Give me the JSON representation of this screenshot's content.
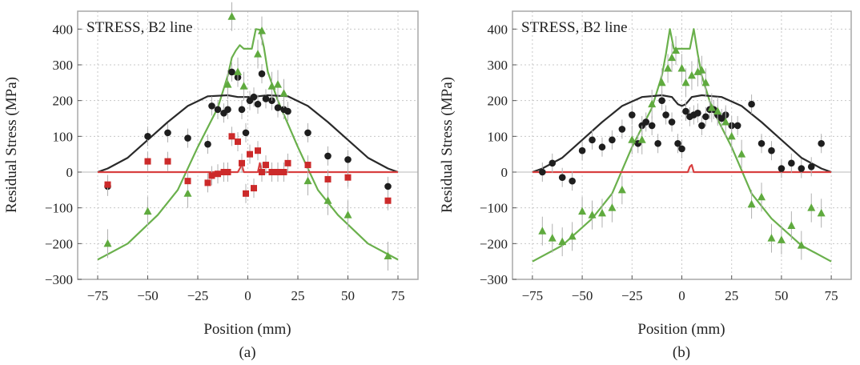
{
  "colors": {
    "model_black": "#2a2a2a",
    "model_green": "#6ab04c",
    "model_red": "#d84040",
    "marker_black": "#1e1e1e",
    "marker_green": "#5faa3e",
    "marker_red": "#cc2a2a",
    "grid": "#c8c8c8",
    "frame": "#a8a8a8",
    "errorbar": "#b0b0b0"
  },
  "chart_data": [
    {
      "id": "a",
      "type": "scatter",
      "panel_label": "(a)",
      "title": "STRESS, B2 line",
      "xlabel": "Position (mm)",
      "ylabel": "Residual Stress (MPa)",
      "xlim": [
        -85,
        85
      ],
      "ylim": [
        -300,
        450
      ],
      "xticks": [
        -75,
        -50,
        -25,
        0,
        25,
        50,
        75
      ],
      "xtick_labels": [
        "−75",
        "−50",
        "−25",
        "0",
        "25",
        "50",
        "75"
      ],
      "yticks": [
        -300,
        -200,
        -100,
        0,
        100,
        200,
        300,
        400
      ],
      "ytick_labels": [
        "−300",
        "−200",
        "−100",
        "0",
        "100",
        "200",
        "300",
        "400"
      ],
      "grid": true,
      "lines": [
        {
          "color_key": "model_green",
          "x": [
            -75,
            -60,
            -45,
            -35,
            -25,
            -15,
            -10,
            -8,
            -6,
            -4,
            -2,
            0,
            2,
            4,
            6,
            8,
            10,
            15,
            25,
            35,
            45,
            60,
            75
          ],
          "y": [
            -245,
            -200,
            -120,
            -50,
            70,
            180,
            270,
            320,
            340,
            355,
            345,
            345,
            345,
            400,
            398,
            350,
            280,
            200,
            70,
            -50,
            -120,
            -200,
            -245
          ]
        },
        {
          "color_key": "model_black",
          "x": [
            -75,
            -70,
            -60,
            -50,
            -40,
            -30,
            -20,
            -10,
            -5,
            0,
            5,
            10,
            20,
            30,
            40,
            50,
            60,
            70,
            75
          ],
          "y": [
            0,
            10,
            40,
            90,
            140,
            185,
            212,
            215,
            210,
            210,
            212,
            215,
            212,
            185,
            140,
            90,
            40,
            10,
            0
          ]
        },
        {
          "color_key": "model_red",
          "x": [
            -75,
            -5,
            -3,
            -2,
            0,
            5,
            6,
            7,
            8,
            75
          ],
          "y": [
            0,
            0,
            20,
            0,
            0,
            0,
            25,
            0,
            0,
            0
          ]
        }
      ],
      "series": [
        {
          "marker": "circle",
          "color_key": "marker_black",
          "points": [
            [
              -70,
              -40
            ],
            [
              -50,
              100
            ],
            [
              -40,
              110
            ],
            [
              -30,
              95
            ],
            [
              -20,
              78
            ],
            [
              -18,
              185
            ],
            [
              -15,
              175
            ],
            [
              -12,
              165
            ],
            [
              -10,
              175
            ],
            [
              -8,
              280
            ],
            [
              -5,
              265
            ],
            [
              -3,
              175
            ],
            [
              -1,
              110
            ],
            [
              1,
              200
            ],
            [
              3,
              210
            ],
            [
              5,
              190
            ],
            [
              7,
              275
            ],
            [
              9,
              205
            ],
            [
              12,
              200
            ],
            [
              15,
              180
            ],
            [
              18,
              175
            ],
            [
              20,
              170
            ],
            [
              30,
              110
            ],
            [
              40,
              45
            ],
            [
              50,
              35
            ],
            [
              70,
              -40
            ]
          ]
        },
        {
          "marker": "triangle",
          "color_key": "marker_green",
          "points": [
            [
              -70,
              -200
            ],
            [
              -50,
              -110
            ],
            [
              -30,
              -60
            ],
            [
              -10,
              245
            ],
            [
              -8,
              435
            ],
            [
              -5,
              280
            ],
            [
              -2,
              240
            ],
            [
              5,
              330
            ],
            [
              7,
              395
            ],
            [
              12,
              240
            ],
            [
              15,
              245
            ],
            [
              18,
              220
            ],
            [
              30,
              -25
            ],
            [
              40,
              -80
            ],
            [
              50,
              -120
            ],
            [
              70,
              -235
            ]
          ]
        },
        {
          "marker": "square",
          "color_key": "marker_red",
          "points": [
            [
              -70,
              -35
            ],
            [
              -50,
              30
            ],
            [
              -40,
              30
            ],
            [
              -30,
              -25
            ],
            [
              -20,
              -30
            ],
            [
              -18,
              -10
            ],
            [
              -15,
              -5
            ],
            [
              -12,
              0
            ],
            [
              -10,
              0
            ],
            [
              -8,
              100
            ],
            [
              -5,
              85
            ],
            [
              -3,
              25
            ],
            [
              -1,
              -60
            ],
            [
              1,
              50
            ],
            [
              3,
              -45
            ],
            [
              5,
              60
            ],
            [
              7,
              0
            ],
            [
              9,
              20
            ],
            [
              12,
              0
            ],
            [
              15,
              0
            ],
            [
              18,
              0
            ],
            [
              20,
              25
            ],
            [
              30,
              20
            ],
            [
              40,
              -20
            ],
            [
              50,
              -15
            ],
            [
              70,
              -80
            ]
          ]
        }
      ]
    },
    {
      "id": "b",
      "type": "scatter",
      "panel_label": "(b)",
      "title": "STRESS, B2 line",
      "xlabel": "Position (mm)",
      "ylabel": "Residual Stress (MPa)",
      "xlim": [
        -85,
        85
      ],
      "ylim": [
        -300,
        450
      ],
      "xticks": [
        -75,
        -50,
        -25,
        0,
        25,
        50,
        75
      ],
      "xtick_labels": [
        "−75",
        "−50",
        "−25",
        "0",
        "25",
        "50",
        "75"
      ],
      "yticks": [
        -300,
        -200,
        -100,
        0,
        100,
        200,
        300,
        400
      ],
      "ytick_labels": [
        "−300",
        "−200",
        "−100",
        "0",
        "100",
        "200",
        "300",
        "400"
      ],
      "grid": true,
      "lines": [
        {
          "color_key": "model_green",
          "x": [
            -75,
            -60,
            -45,
            -35,
            -25,
            -15,
            -10,
            -8,
            -6,
            -4,
            -2,
            0,
            2,
            4,
            6,
            8,
            10,
            15,
            25,
            35,
            45,
            60,
            75
          ],
          "y": [
            -250,
            -205,
            -130,
            -60,
            70,
            180,
            270,
            330,
            400,
            345,
            345,
            345,
            345,
            345,
            400,
            330,
            270,
            180,
            70,
            -60,
            -130,
            -205,
            -250
          ]
        },
        {
          "color_key": "model_black",
          "x": [
            -75,
            -70,
            -60,
            -50,
            -40,
            -30,
            -20,
            -10,
            -5,
            -2,
            0,
            2,
            5,
            10,
            20,
            30,
            40,
            50,
            60,
            70,
            75
          ],
          "y": [
            0,
            10,
            40,
            90,
            140,
            185,
            210,
            215,
            210,
            190,
            185,
            190,
            210,
            215,
            210,
            185,
            140,
            90,
            40,
            10,
            0
          ]
        },
        {
          "color_key": "model_red",
          "x": [
            -75,
            3,
            4,
            5,
            6,
            75
          ],
          "y": [
            0,
            0,
            15,
            20,
            0,
            0
          ]
        }
      ],
      "series": [
        {
          "marker": "circle",
          "color_key": "marker_black",
          "points": [
            [
              -70,
              0
            ],
            [
              -65,
              25
            ],
            [
              -60,
              -15
            ],
            [
              -55,
              -25
            ],
            [
              -50,
              60
            ],
            [
              -45,
              90
            ],
            [
              -40,
              70
            ],
            [
              -35,
              90
            ],
            [
              -30,
              120
            ],
            [
              -25,
              160
            ],
            [
              -22,
              80
            ],
            [
              -20,
              130
            ],
            [
              -18,
              140
            ],
            [
              -15,
              130
            ],
            [
              -12,
              80
            ],
            [
              -10,
              200
            ],
            [
              -8,
              160
            ],
            [
              -5,
              140
            ],
            [
              -2,
              80
            ],
            [
              0,
              65
            ],
            [
              2,
              170
            ],
            [
              4,
              155
            ],
            [
              6,
              160
            ],
            [
              8,
              165
            ],
            [
              10,
              130
            ],
            [
              12,
              155
            ],
            [
              14,
              175
            ],
            [
              16,
              175
            ],
            [
              18,
              160
            ],
            [
              20,
              150
            ],
            [
              22,
              160
            ],
            [
              25,
              130
            ],
            [
              28,
              130
            ],
            [
              35,
              190
            ],
            [
              40,
              80
            ],
            [
              45,
              60
            ],
            [
              50,
              10
            ],
            [
              55,
              25
            ],
            [
              60,
              10
            ],
            [
              65,
              15
            ],
            [
              70,
              80
            ]
          ]
        },
        {
          "marker": "triangle",
          "color_key": "marker_green",
          "points": [
            [
              -70,
              -165
            ],
            [
              -65,
              -185
            ],
            [
              -60,
              -195
            ],
            [
              -55,
              -180
            ],
            [
              -50,
              -110
            ],
            [
              -45,
              -120
            ],
            [
              -40,
              -115
            ],
            [
              -35,
              -100
            ],
            [
              -30,
              -50
            ],
            [
              -25,
              90
            ],
            [
              -20,
              90
            ],
            [
              -15,
              190
            ],
            [
              -10,
              250
            ],
            [
              -7,
              290
            ],
            [
              -5,
              320
            ],
            [
              -3,
              340
            ],
            [
              0,
              290
            ],
            [
              2,
              250
            ],
            [
              5,
              270
            ],
            [
              8,
              280
            ],
            [
              10,
              285
            ],
            [
              12,
              250
            ],
            [
              15,
              180
            ],
            [
              18,
              170
            ],
            [
              22,
              140
            ],
            [
              25,
              100
            ],
            [
              30,
              50
            ],
            [
              35,
              -90
            ],
            [
              40,
              -70
            ],
            [
              45,
              -185
            ],
            [
              50,
              -190
            ],
            [
              55,
              -150
            ],
            [
              60,
              -205
            ],
            [
              65,
              -100
            ],
            [
              70,
              -115
            ]
          ]
        }
      ]
    }
  ]
}
